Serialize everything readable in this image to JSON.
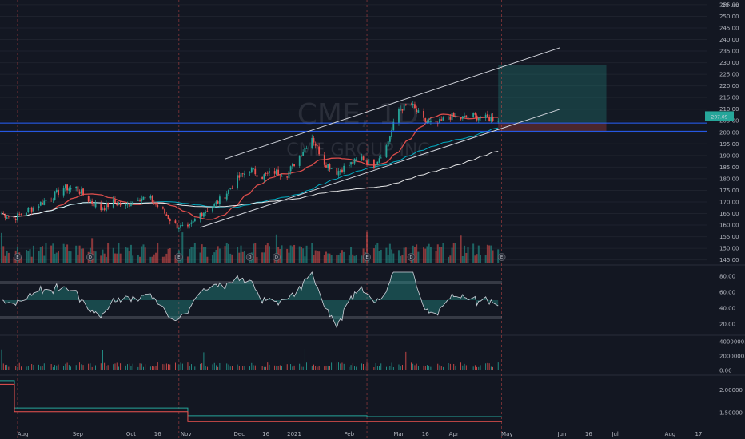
{
  "chart_data": {
    "type": "candlestick",
    "watermark": {
      "symbol": "CME, 1D",
      "name": "CME GROUP INC"
    },
    "currency": "USD",
    "price_axis": {
      "ticks": [
        145,
        150,
        155,
        160,
        165,
        170,
        175,
        180,
        185,
        190,
        195,
        200,
        205,
        210,
        215,
        220,
        225,
        230,
        235,
        240,
        245,
        250,
        255
      ],
      "top_label": "25",
      "ylim": [
        143.5,
        256
      ],
      "last_price_badge": "207.09"
    },
    "time_axis": {
      "labels": [
        "Aug",
        "Sep",
        "Oct",
        "16",
        "Nov",
        "Dec",
        "16",
        "2021",
        "Feb",
        "Mar",
        "16",
        "Apr",
        "May",
        "Jun",
        "16",
        "Jul",
        "Aug",
        "17"
      ]
    },
    "price_anchors": [
      [
        "2020-07-20",
        165
      ],
      [
        "2020-07-27",
        163
      ],
      [
        "2020-08-03",
        166
      ],
      [
        "2020-08-10",
        169
      ],
      [
        "2020-08-17",
        172
      ],
      [
        "2020-08-24",
        176
      ],
      [
        "2020-08-31",
        176
      ],
      [
        "2020-09-07",
        171
      ],
      [
        "2020-09-14",
        167
      ],
      [
        "2020-09-21",
        170
      ],
      [
        "2020-09-28",
        168
      ],
      [
        "2020-10-05",
        172
      ],
      [
        "2020-10-12",
        171
      ],
      [
        "2020-10-19",
        166
      ],
      [
        "2020-10-26",
        160
      ],
      [
        "2020-11-02",
        158
      ],
      [
        "2020-11-09",
        165
      ],
      [
        "2020-11-16",
        168
      ],
      [
        "2020-11-23",
        173
      ],
      [
        "2020-11-30",
        180
      ],
      [
        "2020-12-07",
        184
      ],
      [
        "2020-12-14",
        181
      ],
      [
        "2020-12-21",
        183
      ],
      [
        "2020-12-28",
        182
      ],
      [
        "2021-01-04",
        190
      ],
      [
        "2021-01-11",
        198
      ],
      [
        "2021-01-18",
        187
      ],
      [
        "2021-01-25",
        183
      ],
      [
        "2021-02-01",
        186
      ],
      [
        "2021-02-08",
        189
      ],
      [
        "2021-02-15",
        186
      ],
      [
        "2021-02-22",
        194
      ],
      [
        "2021-03-01",
        210
      ],
      [
        "2021-03-08",
        212
      ],
      [
        "2021-03-15",
        205
      ],
      [
        "2021-03-22",
        203
      ],
      [
        "2021-03-29",
        207
      ],
      [
        "2021-04-05",
        206
      ],
      [
        "2021-04-12",
        207
      ],
      [
        "2021-04-19",
        206
      ],
      [
        "2021-04-26",
        206
      ]
    ],
    "volume_axis": {
      "ticks": [
        "4000000.00",
        "2000000.00",
        "0.00"
      ]
    },
    "oscillator_axis": {
      "ticks": [
        "80.00",
        "60.00",
        "40.00",
        "20.00"
      ]
    },
    "lower_axis": {
      "ticks": [
        "2.00000",
        "1.50000"
      ]
    },
    "events": {
      "earnings": [
        "2020-07-29",
        "2020-10-28",
        "2021-02-11",
        "2021-04-28"
      ],
      "dividends": [
        "2020-09-08",
        "2020-12-07",
        "2020-12-22",
        "2021-03-08"
      ]
    },
    "channel": {
      "upper": [
        [
          "2020-11-23",
          188.5
        ],
        [
          "2021-05-31",
          236.5
        ]
      ],
      "lower": [
        [
          "2020-11-09",
          159
        ],
        [
          "2021-05-31",
          210
        ]
      ]
    },
    "horizontal_lines": [
      204,
      200.5
    ],
    "position_box": {
      "entry": 204,
      "target": 229,
      "stop": 200.5,
      "start": "2021-04-26",
      "end": "2021-06-26"
    },
    "colors": {
      "up": "#26a69a",
      "down": "#ef5350",
      "background": "#131722",
      "grid": "#1e222d",
      "line": "#2962ff",
      "text": "#b2b5be",
      "ma_fast": "#ef5350",
      "ma_mid": "#00bcd4",
      "ma_slow": "#ffffff"
    }
  }
}
